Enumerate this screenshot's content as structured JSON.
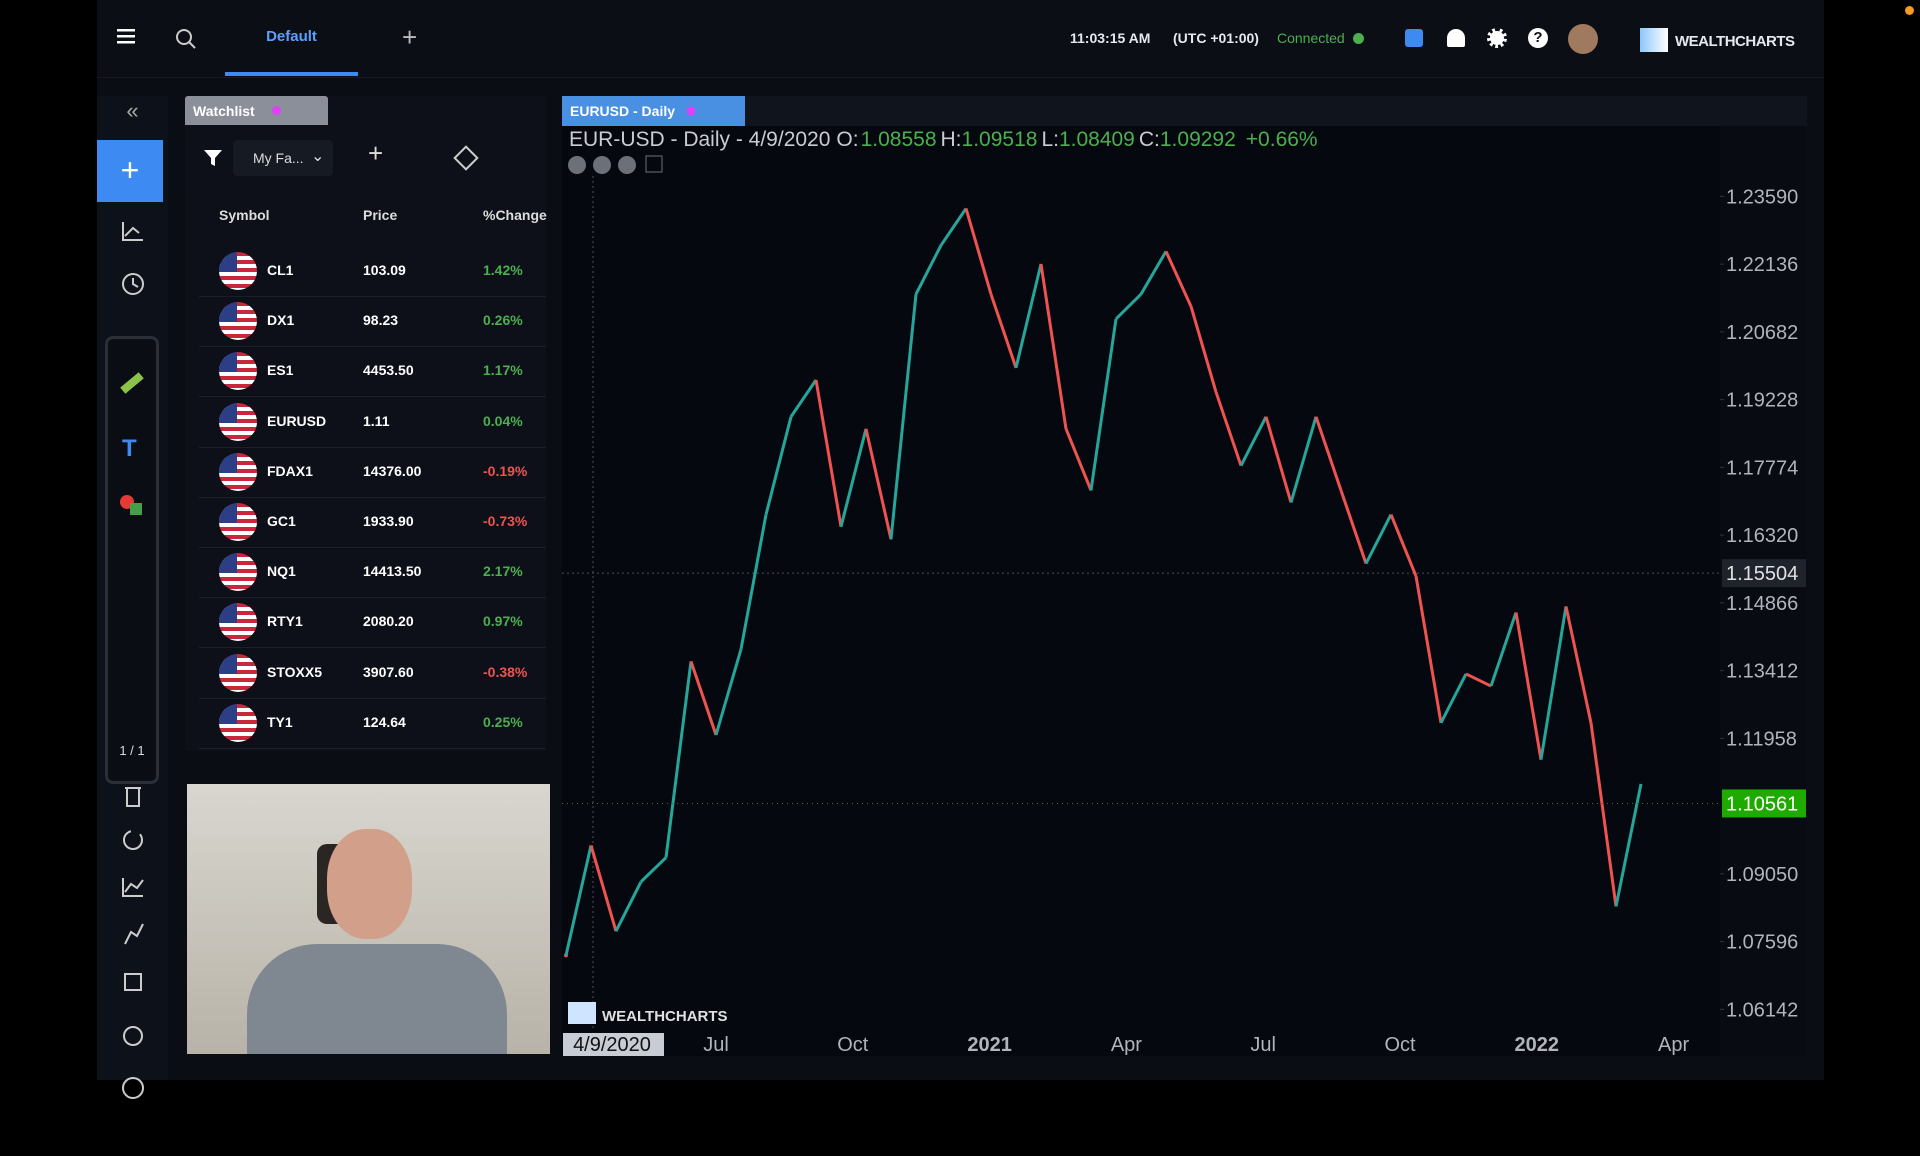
{
  "topbar": {
    "tab": "Default",
    "time": "11:03:15 AM",
    "timezone": "(UTC +01:00)",
    "status": "Connected",
    "brand": "WEALTHCHARTS"
  },
  "toolbar": {
    "page_counter": "1 / 1"
  },
  "watchlist": {
    "tab": "Watchlist",
    "filter": "My Fa...",
    "columns": [
      "Symbol",
      "Price",
      "%Change"
    ],
    "rows": [
      [
        "CL1",
        "103.09",
        "1.42%"
      ],
      [
        "DX1",
        "98.23",
        "0.26%"
      ],
      [
        "ES1",
        "4453.50",
        "1.17%"
      ],
      [
        "EURUSD",
        "1.11",
        "0.04%"
      ],
      [
        "FDAX1",
        "14376.00",
        "-0.19%"
      ],
      [
        "GC1",
        "1933.90",
        "-0.73%"
      ],
      [
        "NQ1",
        "14413.50",
        "2.17%"
      ],
      [
        "RTY1",
        "2080.20",
        "0.97%"
      ],
      [
        "STOXX5",
        "3907.60",
        "-0.38%"
      ],
      [
        "TY1",
        "124.64",
        "0.25%"
      ]
    ]
  },
  "chart_data": {
    "type": "candlestick",
    "tab": "EURUSD - Daily",
    "title": "EUR-USD - Daily - 4/9/2020",
    "ohlc": {
      "open_label": "O:",
      "open": 1.08558,
      "high_label": "H:",
      "high": 1.09518,
      "low_label": "L:",
      "low": 1.08409,
      "close_label": "C:",
      "close": 1.09292,
      "change": "+0.66%"
    },
    "watermark": "WEALTHCHARTS",
    "values": [
      1.073,
      1.0966,
      1.0782,
      1.0888,
      1.094,
      1.1361,
      1.1203,
      1.1387,
      1.1676,
      1.1886,
      1.1965,
      1.165,
      1.186,
      1.1623,
      1.2149,
      1.2254,
      1.2333,
      1.2149,
      1.1991,
      1.2214,
      1.186,
      1.1728,
      1.2096,
      1.2149,
      1.2241,
      1.2123,
      1.1939,
      1.1781,
      1.1886,
      1.1702,
      1.1886,
      1.1728,
      1.1571,
      1.1676,
      1.1544,
      1.1229,
      1.1334,
      1.1308,
      1.1466,
      1.115,
      1.1479,
      1.1229,
      1.0835,
      1.1098
    ],
    "up_color": "#26a69a",
    "down_color": "#ef5350",
    "ylim": [
      1.0572,
      1.2451
    ],
    "yticks": [
      {
        "value": 1.2359,
        "label": "1.23590"
      },
      1.22136,
      1.20682,
      1.19228,
      1.17774,
      {
        "value": 1.1632,
        "label": "1.16320"
      },
      1.14866,
      1.13412,
      1.11958,
      {
        "value": 1.0905,
        "label": "1.09050"
      },
      1.07596,
      1.06142
    ],
    "xticks": [
      "4/9/2020",
      "Jul",
      "Oct",
      "2021",
      "Apr",
      "Jul",
      "Oct",
      "2022",
      "Apr"
    ],
    "current_price": 1.10561,
    "crosshair_price": 1.15504
  }
}
